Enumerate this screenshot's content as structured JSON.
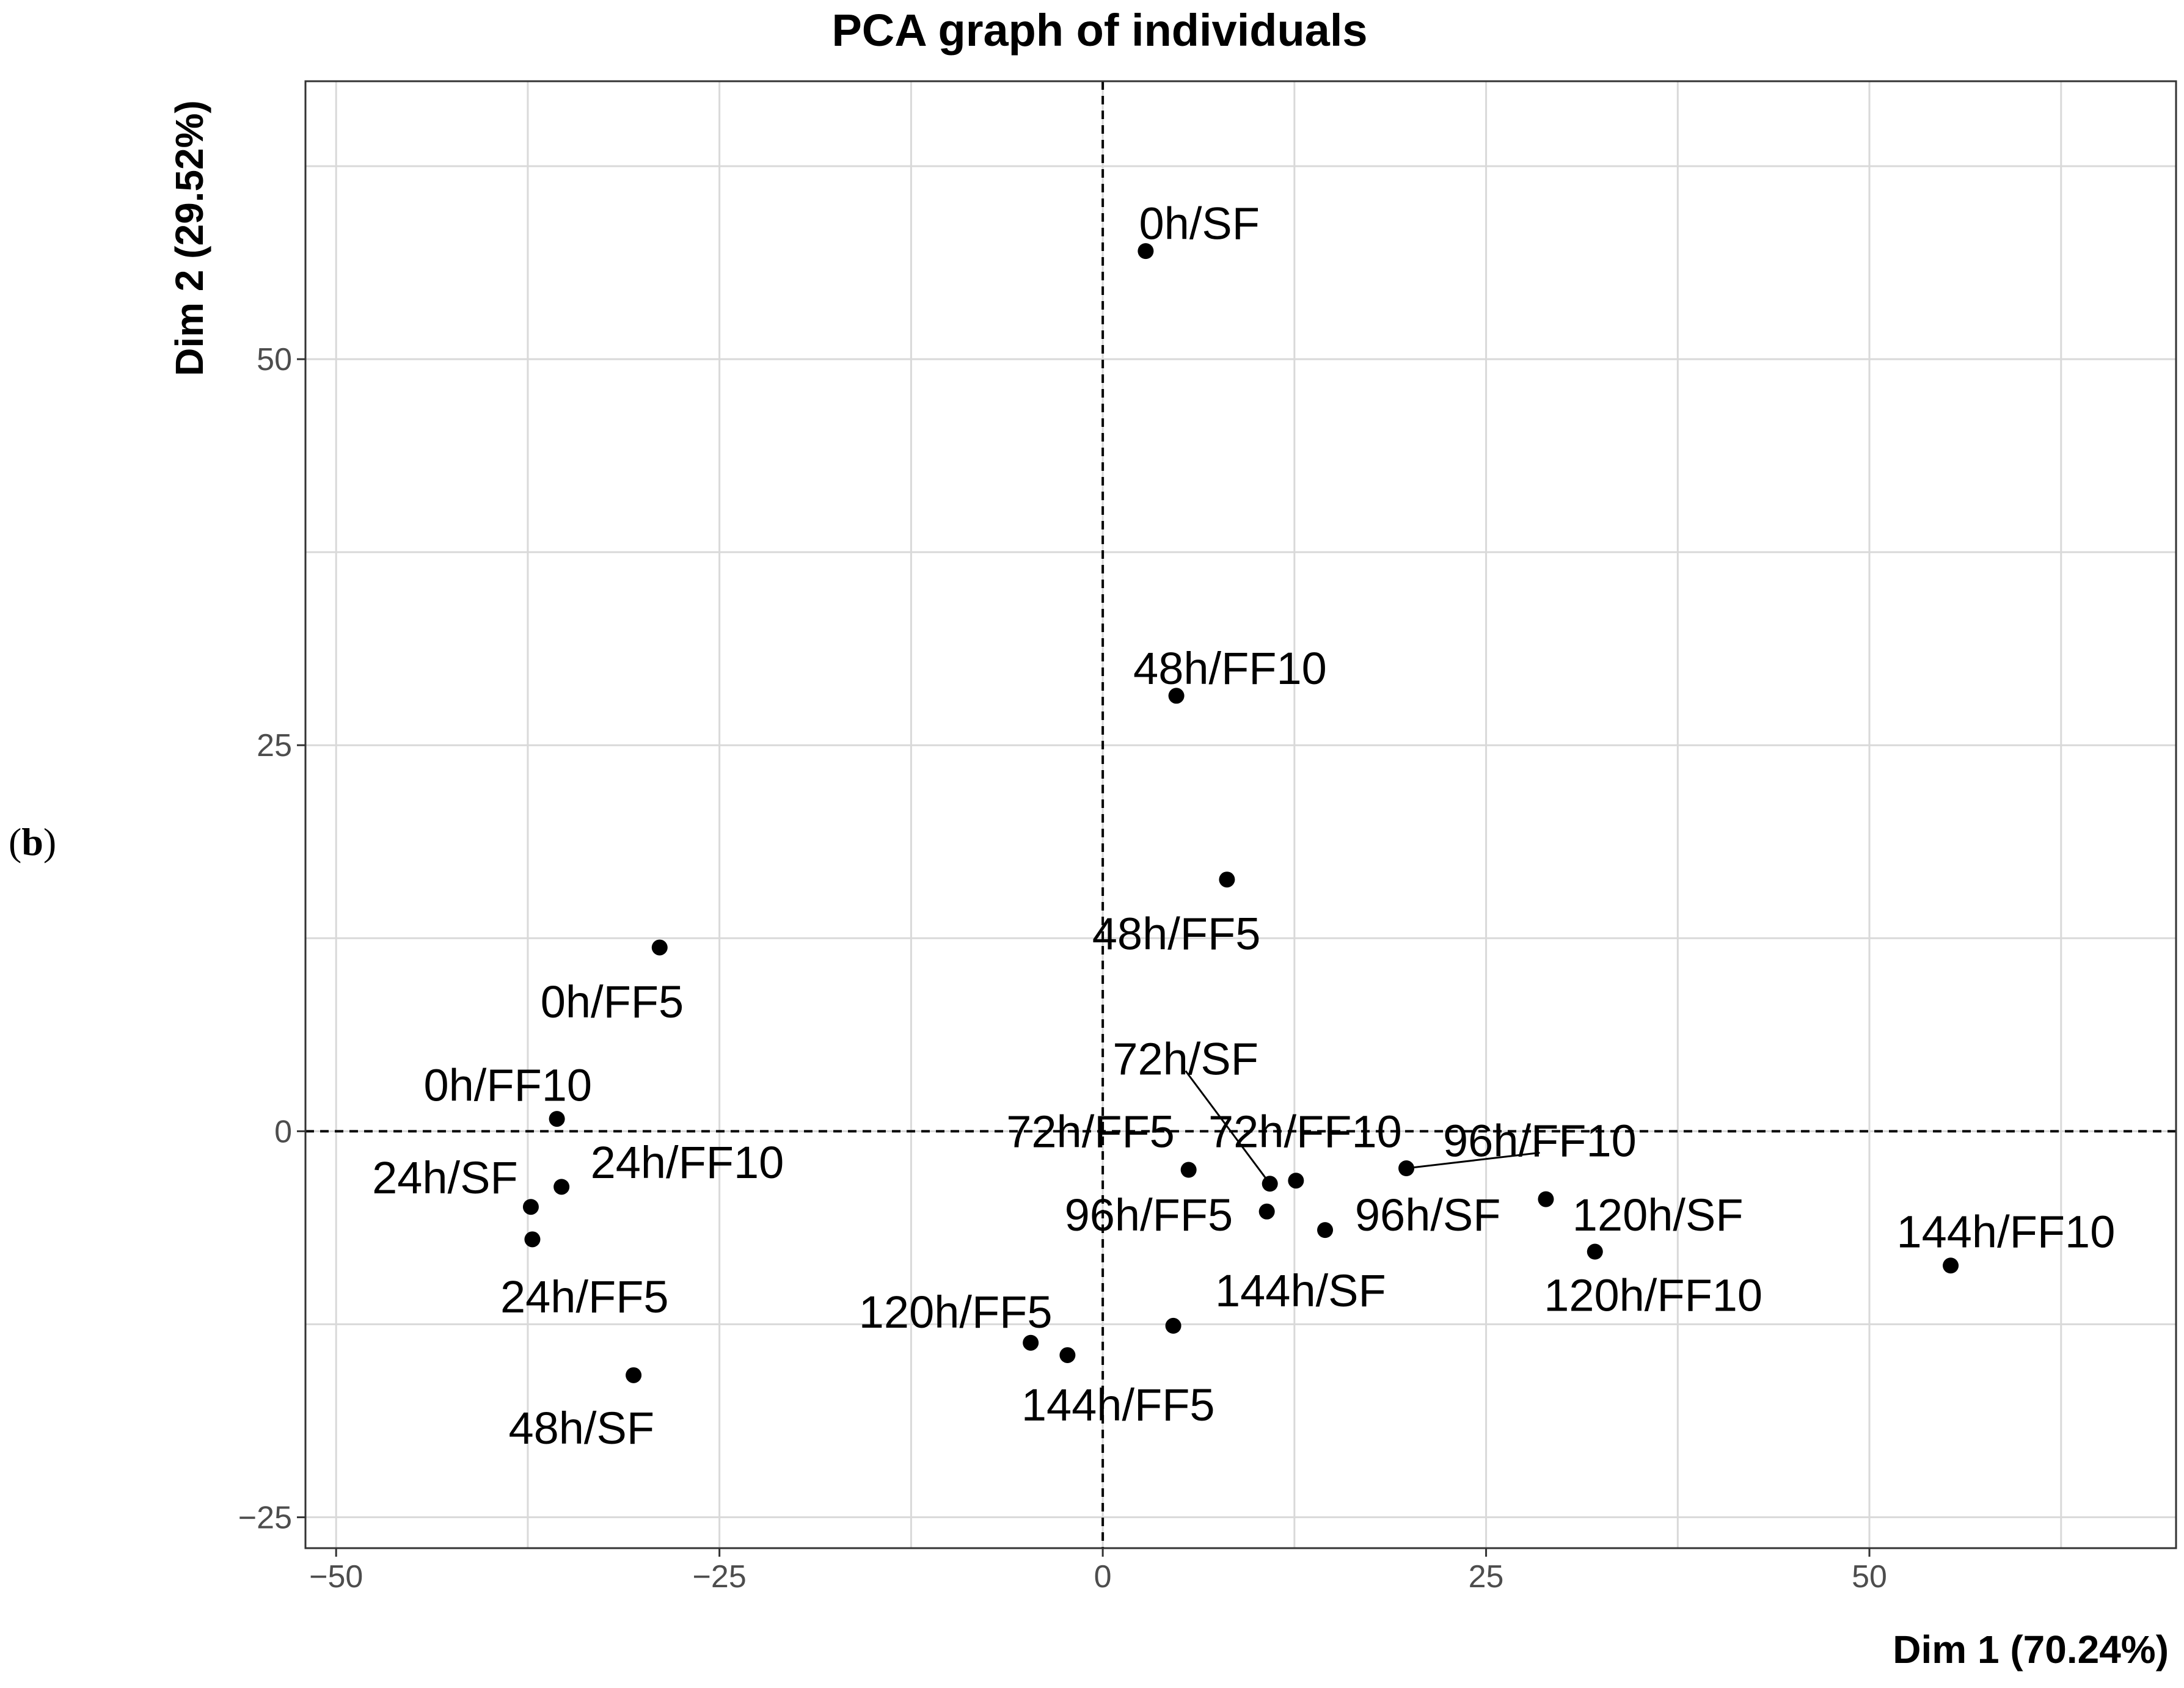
{
  "panel": {
    "open": "(",
    "letter": "b",
    "close": ")"
  },
  "chart_data": {
    "type": "scatter",
    "title": "PCA graph of individuals",
    "xlabel": "Dim 1 (70.24%)",
    "ylabel": "Dim 2 (29.52%)",
    "xlim": [
      -52,
      70
    ],
    "ylim": [
      -27,
      68
    ],
    "xticks": [
      -50,
      -25,
      0,
      25,
      50
    ],
    "xtick_labels": [
      "−50",
      "−25",
      "0",
      "25",
      "50"
    ],
    "yticks": [
      -25,
      0,
      25,
      50
    ],
    "ytick_labels": [
      "−25",
      "0",
      "25",
      "50"
    ],
    "reference_lines": {
      "x": 0,
      "y": 0
    },
    "points": [
      {
        "label": "0h/SF",
        "x": 2.8,
        "y": 57.0,
        "lx": 6.3,
        "ly": 58.8
      },
      {
        "label": "48h/FF10",
        "x": 4.8,
        "y": 28.2,
        "lx": 8.3,
        "ly": 30.0
      },
      {
        "label": "48h/FF5",
        "x": 8.1,
        "y": 16.3,
        "lx": 4.8,
        "ly": 12.8
      },
      {
        "label": "0h/FF5",
        "x": -28.9,
        "y": 11.9,
        "lx": -32.0,
        "ly": 8.4
      },
      {
        "label": "0h/FF10",
        "x": -35.6,
        "y": 0.8,
        "lx": -38.8,
        "ly": 3.0
      },
      {
        "label": "24h/SF",
        "x": -37.3,
        "y": -4.9,
        "lx": -42.9,
        "ly": -3.0
      },
      {
        "label": "24h/FF10",
        "x": -35.3,
        "y": -3.6,
        "lx": -27.1,
        "ly": -2.0
      },
      {
        "label": "24h/FF5",
        "x": -37.2,
        "y": -7.0,
        "lx": -33.8,
        "ly": -10.7
      },
      {
        "label": "48h/SF",
        "x": -30.6,
        "y": -15.8,
        "lx": -34.0,
        "ly": -19.2
      },
      {
        "label": "72h/SF",
        "x": 10.9,
        "y": -3.4,
        "lx": 5.4,
        "ly": 4.7,
        "leader": true
      },
      {
        "label": "72h/FF5",
        "x": 5.6,
        "y": -2.5,
        "lx": -0.8,
        "ly": 0.0
      },
      {
        "label": "72h/FF10",
        "x": 12.6,
        "y": -3.2,
        "lx": 13.2,
        "ly": 0.0
      },
      {
        "label": "96h/FF10",
        "x": 19.8,
        "y": -2.4,
        "lx": 28.5,
        "ly": -0.6,
        "leader": true
      },
      {
        "label": "96h/FF5",
        "x": 10.7,
        "y": -5.2,
        "lx": 3.0,
        "ly": -5.4
      },
      {
        "label": "96h/SF",
        "x": 14.5,
        "y": -6.4,
        "lx": 21.2,
        "ly": -5.4
      },
      {
        "label": "120h/SF",
        "x": 28.9,
        "y": -4.4,
        "lx": 36.2,
        "ly": -5.4
      },
      {
        "label": "120h/FF10",
        "x": 32.1,
        "y": -7.8,
        "lx": 35.9,
        "ly": -10.6
      },
      {
        "label": "144h/FF10",
        "x": 55.3,
        "y": -8.7,
        "lx": 58.9,
        "ly": -6.5
      },
      {
        "label": "144h/SF",
        "x": 4.6,
        "y": -12.6,
        "lx": 12.9,
        "ly": -10.3
      },
      {
        "label": "120h/FF5",
        "x": -4.7,
        "y": -13.7,
        "lx": -9.6,
        "ly": -11.7
      },
      {
        "label": "144h/FF5",
        "x": -2.3,
        "y": -14.5,
        "lx": 1.0,
        "ly": -17.7
      }
    ]
  }
}
